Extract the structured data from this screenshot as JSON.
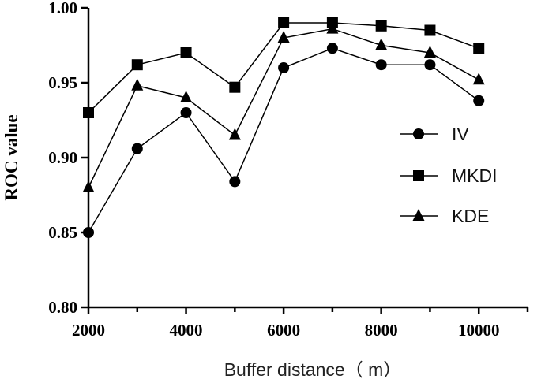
{
  "chart_data": {
    "type": "line",
    "title": "",
    "xlabel": "Buffer distance（ m）",
    "ylabel": "ROC value",
    "x": [
      2000,
      3000,
      4000,
      5000,
      6000,
      7000,
      8000,
      9000,
      10000
    ],
    "xlim": [
      2000,
      11000
    ],
    "ylim": [
      0.8,
      1.0
    ],
    "x_ticks": [
      2000,
      4000,
      6000,
      8000,
      10000
    ],
    "x_tick_labels": [
      "2000",
      "4000",
      "6000",
      "8000",
      "10000"
    ],
    "y_ticks": [
      0.8,
      0.85,
      0.9,
      0.95,
      1.0
    ],
    "y_tick_labels": [
      "0.80",
      "0.85",
      "0.90",
      "0.95",
      "1.00"
    ],
    "grid": false,
    "legend_position": "right",
    "series": [
      {
        "name": "IV",
        "marker": "circle",
        "values": [
          0.85,
          0.906,
          0.93,
          0.884,
          0.96,
          0.973,
          0.962,
          0.962,
          0.938
        ]
      },
      {
        "name": "MKDI",
        "marker": "square",
        "values": [
          0.93,
          0.962,
          0.97,
          0.947,
          0.99,
          0.99,
          0.988,
          0.985,
          0.973
        ]
      },
      {
        "name": "KDE",
        "marker": "triangle",
        "values": [
          0.88,
          0.948,
          0.94,
          0.915,
          0.98,
          0.986,
          0.975,
          0.97,
          0.952
        ]
      }
    ],
    "colors": {
      "line": "#000000",
      "marker": "#000000"
    }
  }
}
